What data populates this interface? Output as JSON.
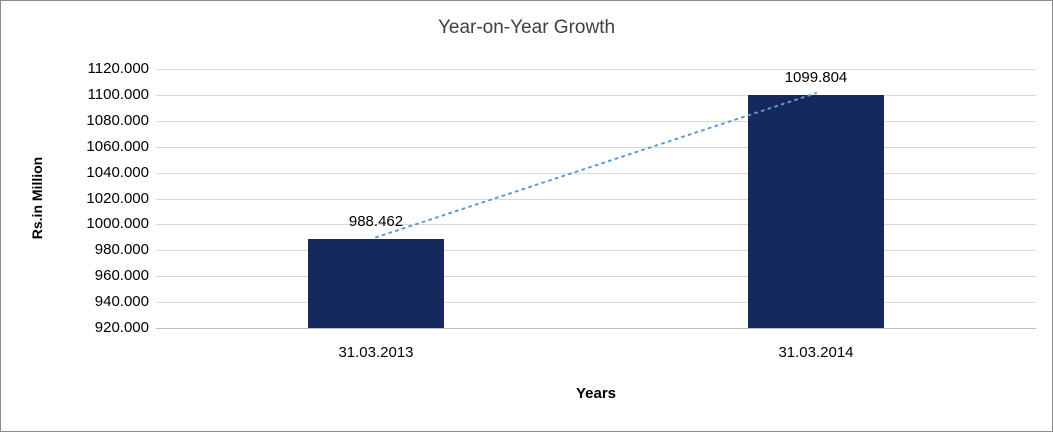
{
  "chart_data": {
    "type": "bar",
    "title": "Year-on-Year Growth",
    "xlabel": "Years",
    "ylabel": "Rs.in Million",
    "categories": [
      "31.03.2013",
      "31.03.2014"
    ],
    "values": [
      988.462,
      1099.804
    ],
    "data_labels": [
      "988.462",
      "1099.804"
    ],
    "ylim": [
      920,
      1120
    ],
    "ytick_step": 20,
    "yticks": [
      {
        "value": 920,
        "label": "920.000"
      },
      {
        "value": 940,
        "label": "940.000"
      },
      {
        "value": 960,
        "label": "960.000"
      },
      {
        "value": 980,
        "label": "980.000"
      },
      {
        "value": 1000,
        "label": "1000.000"
      },
      {
        "value": 1020,
        "label": "1020.000"
      },
      {
        "value": 1040,
        "label": "1040.000"
      },
      {
        "value": 1060,
        "label": "1060.000"
      },
      {
        "value": 1080,
        "label": "1080.000"
      },
      {
        "value": 1100,
        "label": "1100.000"
      },
      {
        "value": 1120,
        "label": "1120.000"
      }
    ],
    "grid": true,
    "legend": false,
    "bar_color": "#16295f",
    "trendline": {
      "color": "#5b9bd5",
      "style": "dotted"
    }
  }
}
